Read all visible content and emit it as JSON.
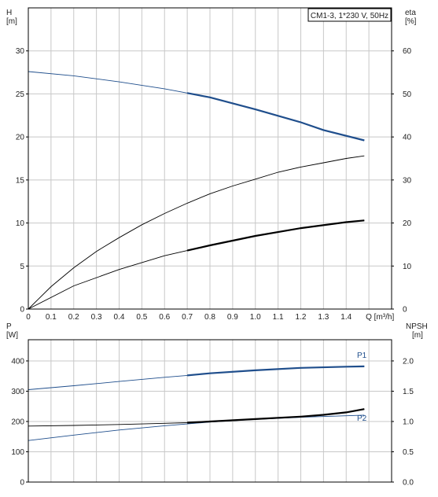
{
  "title": "CM1-3, 1*230 V, 50Hz",
  "colors": {
    "blue": "#1f4e8c",
    "black": "#000000",
    "grid": "#c8c8c8"
  },
  "chart_data": [
    {
      "type": "line",
      "x_label": "Q [m³/h]",
      "x_ticks": [
        "0",
        "0.1",
        "0.2",
        "0.3",
        "0.4",
        "0.5",
        "0.6",
        "0.7",
        "0.8",
        "0.9",
        "1.0",
        "1.1",
        "1.2",
        "1.3",
        "1.4",
        "Q [m³/h]"
      ],
      "xlim": [
        0,
        1.6
      ],
      "left_axis": {
        "label": [
          "H",
          "[m]"
        ],
        "ylim": [
          0,
          35
        ],
        "ticks": [
          "0",
          "5",
          "10",
          "15",
          "20",
          "25",
          "30"
        ],
        "tick_values": [
          0,
          5,
          10,
          15,
          20,
          25,
          30
        ]
      },
      "right_axis": {
        "label": [
          "eta",
          "[%]"
        ],
        "ylim": [
          0,
          70
        ],
        "ticks": [
          "0",
          "10",
          "20",
          "30",
          "40",
          "50",
          "60"
        ],
        "tick_values": [
          0,
          10,
          20,
          30,
          40,
          50,
          60
        ]
      },
      "grid": true,
      "series": [
        {
          "key": "H",
          "axis": "left",
          "color": "#1f4e8c",
          "bold_from": 0.7,
          "x": [
            0,
            0.2,
            0.4,
            0.6,
            0.7,
            0.8,
            1.0,
            1.2,
            1.3,
            1.48
          ],
          "y": [
            27.6,
            27.1,
            26.4,
            25.6,
            25.1,
            24.6,
            23.2,
            21.7,
            20.8,
            19.6
          ]
        },
        {
          "key": "eta_upper",
          "axis": "left",
          "color": "#000000",
          "bold_from": null,
          "x": [
            0,
            0.1,
            0.2,
            0.3,
            0.4,
            0.5,
            0.6,
            0.7,
            0.8,
            0.9,
            1.0,
            1.1,
            1.2,
            1.3,
            1.4,
            1.48
          ],
          "y": [
            0,
            2.6,
            4.8,
            6.7,
            8.3,
            9.8,
            11.1,
            12.3,
            13.4,
            14.3,
            15.1,
            15.9,
            16.5,
            17.0,
            17.5,
            17.8
          ]
        },
        {
          "key": "eta_lower",
          "axis": "left",
          "color": "#000000",
          "bold_from": 0.7,
          "x": [
            0,
            0.2,
            0.4,
            0.6,
            0.7,
            0.8,
            1.0,
            1.2,
            1.4,
            1.48
          ],
          "y": [
            0,
            2.7,
            4.6,
            6.2,
            6.8,
            7.4,
            8.5,
            9.4,
            10.1,
            10.3
          ]
        }
      ]
    },
    {
      "type": "line",
      "xlim": [
        0,
        1.6
      ],
      "left_axis": {
        "label": [
          "P",
          "[W]"
        ],
        "ylim": [
          0,
          470
        ],
        "ticks": [
          "0",
          "100",
          "200",
          "300",
          "400"
        ],
        "tick_values": [
          0,
          100,
          200,
          300,
          400
        ]
      },
      "right_axis": {
        "label": [
          "NPSH",
          "[m]"
        ],
        "ylim": [
          0,
          2.35
        ],
        "ticks": [
          "0.0",
          "0.5",
          "1.0",
          "1.5",
          "2.0"
        ],
        "tick_values": [
          0,
          0.5,
          1.0,
          1.5,
          2.0
        ]
      },
      "grid": true,
      "series": [
        {
          "key": "P1",
          "name": "P1",
          "axis": "left",
          "color": "#1f4e8c",
          "bold_from": 0.7,
          "x": [
            0,
            0.2,
            0.4,
            0.6,
            0.7,
            0.8,
            1.0,
            1.2,
            1.4,
            1.48
          ],
          "y": [
            305,
            318,
            332,
            346,
            352,
            359,
            369,
            377,
            381,
            382
          ]
        },
        {
          "key": "P2",
          "name": "P2",
          "axis": "left",
          "color": "#1f4e8c",
          "bold_from": null,
          "x": [
            0,
            0.2,
            0.4,
            0.6,
            0.7,
            0.8,
            1.0,
            1.2,
            1.4,
            1.48
          ],
          "y": [
            137,
            155,
            172,
            186,
            192,
            198,
            207,
            214,
            219,
            221
          ]
        },
        {
          "key": "NPSH",
          "axis": "left",
          "color": "#000000",
          "bold_from": 0.7,
          "x": [
            0,
            0.2,
            0.4,
            0.6,
            0.7,
            0.8,
            1.0,
            1.2,
            1.3,
            1.4,
            1.48
          ],
          "y": [
            185,
            187,
            190,
            194,
            196,
            200,
            208,
            216,
            222,
            230,
            241
          ]
        }
      ]
    }
  ]
}
